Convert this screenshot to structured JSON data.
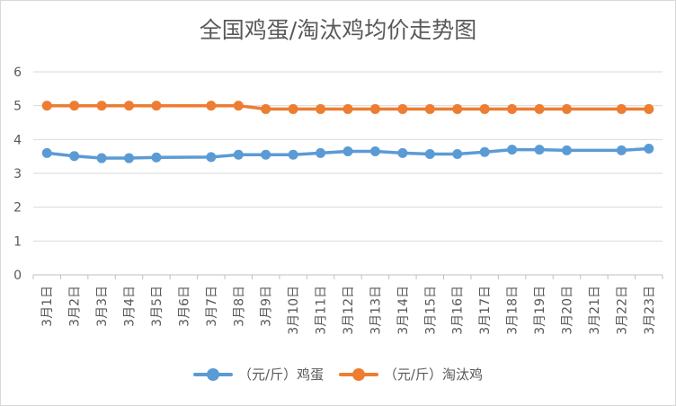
{
  "chart_data": {
    "type": "line",
    "title": "全国鸡蛋/淘汰鸡均价走势图",
    "categories": [
      "3月1日",
      "3月2日",
      "3月3日",
      "3月4日",
      "3月5日",
      "3月6日",
      "3月7日",
      "3月8日",
      "3月9日",
      "3月10日",
      "3月11日",
      "3月12日",
      "3月13日",
      "3月14日",
      "3月15日",
      "3月16日",
      "3月17日",
      "3月18日",
      "3月19日",
      "3月20日",
      "3月21日",
      "3月22日",
      "3月23日"
    ],
    "series": [
      {
        "name": "（元/斤）鸡蛋",
        "color": "#5b9bd5",
        "values": [
          3.6,
          3.51,
          3.45,
          3.45,
          3.47,
          null,
          3.48,
          3.55,
          3.55,
          3.55,
          3.6,
          3.65,
          3.65,
          3.6,
          3.57,
          3.57,
          3.63,
          3.7,
          3.7,
          3.68,
          null,
          3.68,
          3.73
        ]
      },
      {
        "name": "（元/斤）淘汰鸡",
        "color": "#ed7d31",
        "values": [
          5.0,
          5.0,
          5.0,
          5.0,
          5.0,
          null,
          5.0,
          5.0,
          4.9,
          4.9,
          4.9,
          4.9,
          4.9,
          4.9,
          4.9,
          4.9,
          4.9,
          4.9,
          4.9,
          4.9,
          null,
          4.9,
          4.9
        ]
      }
    ],
    "yticks": [
      "0",
      "1",
      "2",
      "3",
      "4",
      "5",
      "6"
    ],
    "ylim": [
      0,
      6
    ],
    "grid": true,
    "legend_position": "bottom"
  }
}
